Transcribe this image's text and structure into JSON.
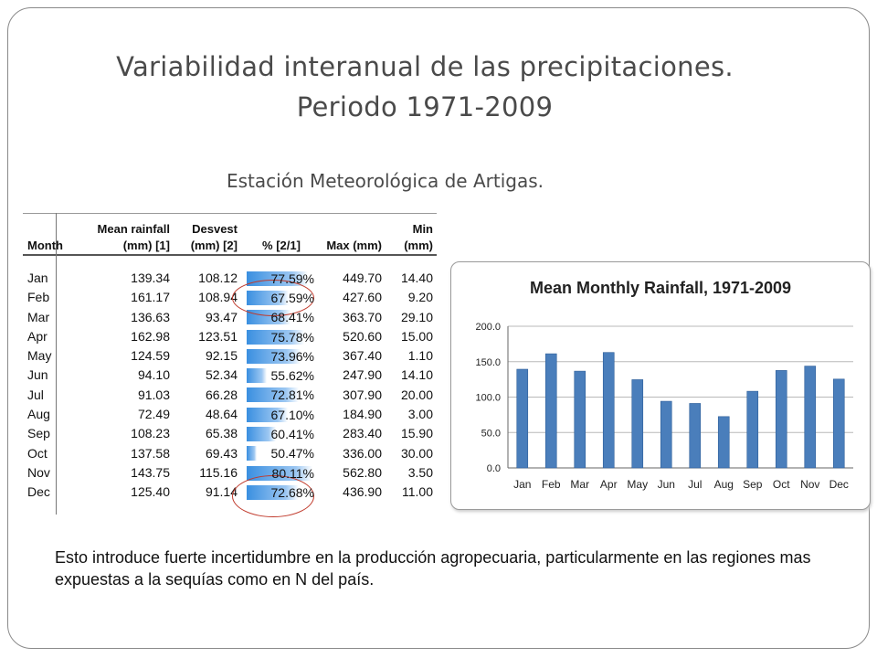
{
  "slide": {
    "title_line1": "Variabilidad interanual de las precipitaciones.",
    "title_line2": "Periodo 1971-2009",
    "subtitle": "Estación Meteorológica de Artigas.",
    "note": "Esto introduce fuerte incertidumbre en la producción agropecuaria, particularmente en las regiones mas expuestas a la sequías como en N del país."
  },
  "table": {
    "headers": [
      "Month",
      "Mean rainfall (mm) [1]",
      "Desvest (mm) [2]",
      "% [2/1]",
      "Max (mm)",
      "Min (mm)"
    ],
    "rows": [
      {
        "month": "Jan",
        "mean": "139.34",
        "desv": "108.12",
        "pct": "77.59%",
        "max": "449.70",
        "min": "14.40"
      },
      {
        "month": "Feb",
        "mean": "161.17",
        "desv": "108.94",
        "pct": "67.59%",
        "max": "427.60",
        "min": "9.20"
      },
      {
        "month": "Mar",
        "mean": "136.63",
        "desv": "93.47",
        "pct": "68.41%",
        "max": "363.70",
        "min": "29.10"
      },
      {
        "month": "Apr",
        "mean": "162.98",
        "desv": "123.51",
        "pct": "75.78%",
        "max": "520.60",
        "min": "15.00"
      },
      {
        "month": "May",
        "mean": "124.59",
        "desv": "92.15",
        "pct": "73.96%",
        "max": "367.40",
        "min": "1.10"
      },
      {
        "month": "Jun",
        "mean": "94.10",
        "desv": "52.34",
        "pct": "55.62%",
        "max": "247.90",
        "min": "14.10"
      },
      {
        "month": "Jul",
        "mean": "91.03",
        "desv": "66.28",
        "pct": "72.81%",
        "max": "307.90",
        "min": "20.00"
      },
      {
        "month": "Aug",
        "mean": "72.49",
        "desv": "48.64",
        "pct": "67.10%",
        "max": "184.90",
        "min": "3.00"
      },
      {
        "month": "Sep",
        "mean": "108.23",
        "desv": "65.38",
        "pct": "60.41%",
        "max": "283.40",
        "min": "15.90"
      },
      {
        "month": "Oct",
        "mean": "137.58",
        "desv": "69.43",
        "pct": "50.47%",
        "max": "336.00",
        "min": "30.00"
      },
      {
        "month": "Nov",
        "mean": "143.75",
        "desv": "115.16",
        "pct": "80.11%",
        "max": "562.80",
        "min": "3.50"
      },
      {
        "month": "Dec",
        "mean": "125.40",
        "desv": "91.14",
        "pct": "72.68%",
        "max": "436.90",
        "min": "11.00"
      }
    ],
    "pct_bar_color": "#3a8fe0",
    "highlight_color": "#c0392b"
  },
  "chart_data": {
    "type": "bar",
    "title": "Mean Monthly Rainfall, 1971-2009",
    "categories": [
      "Jan",
      "Feb",
      "Mar",
      "Apr",
      "May",
      "Jun",
      "Jul",
      "Aug",
      "Sep",
      "Oct",
      "Nov",
      "Dec"
    ],
    "values": [
      139.34,
      161.17,
      136.63,
      162.98,
      124.59,
      94.1,
      91.03,
      72.49,
      108.23,
      137.58,
      143.75,
      125.4
    ],
    "ylim": [
      0,
      200
    ],
    "yticks": [
      "0.0",
      "50.0",
      "100.0",
      "150.0",
      "200.0"
    ],
    "grid": true,
    "legend": "none",
    "bar_color": "#4a7ebb"
  }
}
